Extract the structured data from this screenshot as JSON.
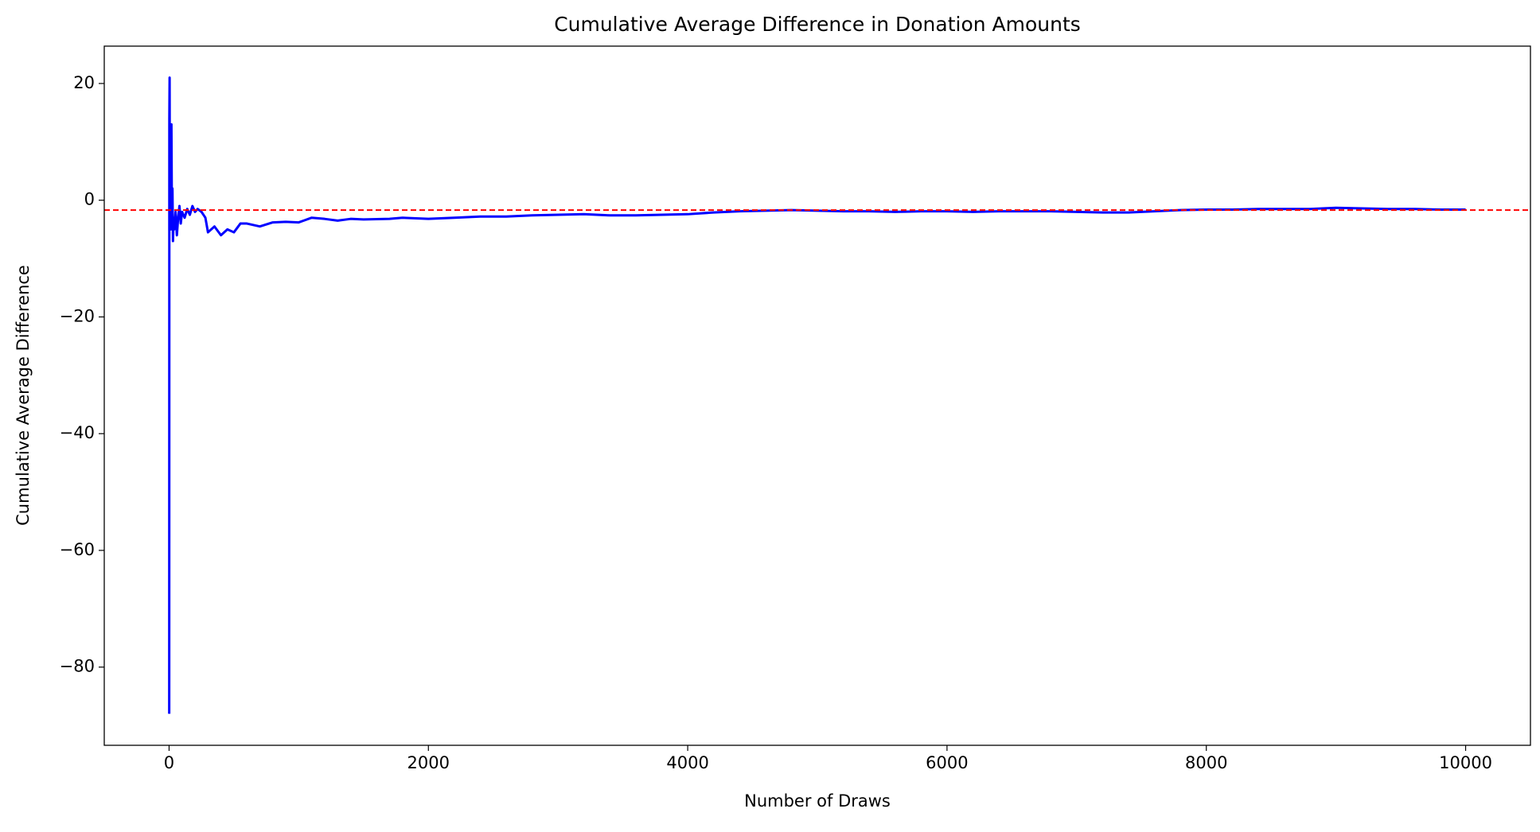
{
  "chart_data": {
    "type": "line",
    "title": "Cumulative Average Difference in Donation Amounts",
    "x_label": "Number of Draws",
    "y_label": "Cumulative Average Difference",
    "x": [
      1,
      2,
      4,
      6,
      10,
      14,
      18,
      22,
      26,
      30,
      35,
      40,
      50,
      60,
      70,
      80,
      90,
      100,
      120,
      140,
      160,
      180,
      200,
      220,
      250,
      280,
      300,
      350,
      400,
      450,
      500,
      550,
      600,
      700,
      800,
      900,
      1000,
      1100,
      1200,
      1300,
      1400,
      1500,
      1700,
      1800,
      2000,
      2200,
      2400,
      2600,
      2800,
      3000,
      3200,
      3400,
      3600,
      3800,
      4000,
      4200,
      4400,
      4600,
      4800,
      5000,
      5200,
      5400,
      5600,
      5800,
      6000,
      6200,
      6400,
      6600,
      6800,
      7000,
      7200,
      7400,
      7600,
      7800,
      8000,
      8200,
      8400,
      8600,
      8800,
      9000,
      9200,
      9400,
      9600,
      9800,
      10000
    ],
    "series": [
      {
        "color": "#0000ff",
        "values": [
          -88,
          14,
          21,
          -3,
          10,
          -5,
          13,
          -4,
          2,
          -7,
          -3,
          -5,
          -2,
          -6,
          -3,
          -1,
          -4,
          -2,
          -3,
          -1.5,
          -2.5,
          -1,
          -2,
          -1.5,
          -2,
          -3,
          -5.5,
          -4.5,
          -6,
          -5,
          -5.5,
          -4,
          -4,
          -4.5,
          -3.8,
          -3.7,
          -3.8,
          -3,
          -3.2,
          -3.5,
          -3.2,
          -3.3,
          -3.2,
          -3,
          -3.2,
          -3,
          -2.8,
          -2.8,
          -2.6,
          -2.5,
          -2.4,
          -2.6,
          -2.6,
          -2.5,
          -2.4,
          -2.1,
          -1.9,
          -1.8,
          -1.7,
          -1.8,
          -1.9,
          -1.9,
          -2,
          -1.9,
          -1.9,
          -2,
          -1.9,
          -1.9,
          -1.9,
          -2,
          -2.1,
          -2.1,
          -1.9,
          -1.7,
          -1.6,
          -1.6,
          -1.5,
          -1.5,
          -1.5,
          -1.3,
          -1.4,
          -1.5,
          -1.5,
          -1.6,
          -1.6
        ]
      }
    ],
    "hline": {
      "value": -1.7,
      "color": "#ff0000"
    },
    "xlim": [
      -500,
      10500
    ],
    "xticks": [
      0,
      2000,
      4000,
      6000,
      8000,
      10000
    ],
    "ylim": [
      -93.4,
      26.4
    ],
    "yticks": [
      {
        "value": -80,
        "label": "−80"
      },
      {
        "value": -60,
        "label": "−60"
      },
      {
        "value": -40,
        "label": "−40"
      },
      {
        "value": -20,
        "label": "−20"
      },
      0,
      20
    ]
  }
}
